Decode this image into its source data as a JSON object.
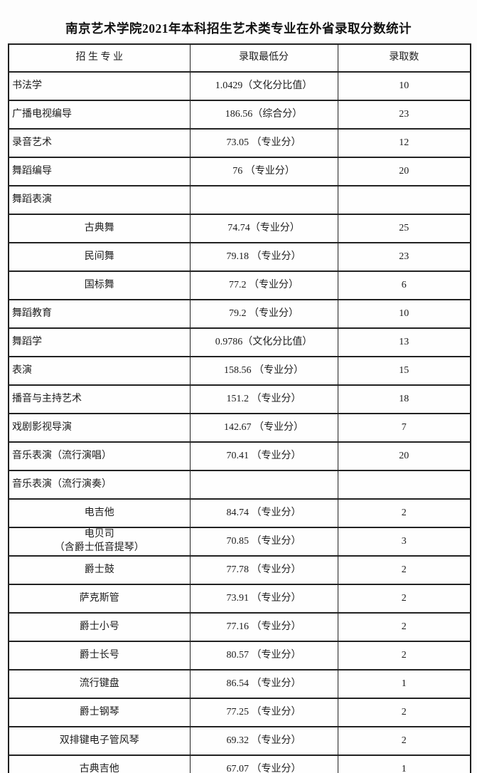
{
  "title": "南京艺术学院2021年本科招生艺术类专业在外省录取分数统计",
  "table": {
    "headers": [
      "招 生 专 业",
      "录取最低分",
      "录取数"
    ],
    "rows": [
      {
        "label": "书法学",
        "score": "1.0429（文化分比值）",
        "count": "10",
        "sub": false
      },
      {
        "label": "广播电视编导",
        "score": "186.56（综合分）",
        "count": "23",
        "sub": false
      },
      {
        "label": "录音艺术",
        "score": "73.05 （专业分）",
        "count": "12",
        "sub": false
      },
      {
        "label": "舞蹈编导",
        "score": "76 （专业分）",
        "count": "20",
        "sub": false
      },
      {
        "label": "舞蹈表演",
        "score": "",
        "count": "",
        "sub": false
      },
      {
        "label": "古典舞",
        "score": "74.74（专业分）",
        "count": "25",
        "sub": true
      },
      {
        "label": "民间舞",
        "score": "79.18 （专业分）",
        "count": "23",
        "sub": true
      },
      {
        "label": "国标舞",
        "score": "77.2 （专业分）",
        "count": "6",
        "sub": true
      },
      {
        "label": "舞蹈教育",
        "score": "79.2 （专业分）",
        "count": "10",
        "sub": false
      },
      {
        "label": "舞蹈学",
        "score": "0.9786（文化分比值）",
        "count": "13",
        "sub": false
      },
      {
        "label": "表演",
        "score": "158.56 （专业分）",
        "count": "15",
        "sub": false
      },
      {
        "label": "播音与主持艺术",
        "score": "151.2 （专业分）",
        "count": "18",
        "sub": false
      },
      {
        "label": "戏剧影视导演",
        "score": "142.67 （专业分）",
        "count": "7",
        "sub": false
      },
      {
        "label": "音乐表演（流行演唱）",
        "score": "70.41 （专业分）",
        "count": "20",
        "sub": false
      },
      {
        "label": "音乐表演（流行演奏）",
        "score": "",
        "count": "",
        "sub": false
      },
      {
        "label": "电吉他",
        "score": "84.74 （专业分）",
        "count": "2",
        "sub": true
      },
      {
        "label": "电贝司\n（含爵士低音提琴）",
        "score": "70.85 （专业分）",
        "count": "3",
        "sub": true
      },
      {
        "label": "爵士鼓",
        "score": "77.78 （专业分）",
        "count": "2",
        "sub": true
      },
      {
        "label": "萨克斯管",
        "score": "73.91 （专业分）",
        "count": "2",
        "sub": true
      },
      {
        "label": "爵士小号",
        "score": "77.16 （专业分）",
        "count": "2",
        "sub": true
      },
      {
        "label": "爵士长号",
        "score": "80.57 （专业分）",
        "count": "2",
        "sub": true
      },
      {
        "label": "流行键盘",
        "score": "86.54 （专业分）",
        "count": "1",
        "sub": true
      },
      {
        "label": "爵士钢琴",
        "score": "77.25 （专业分）",
        "count": "2",
        "sub": true
      },
      {
        "label": "双排键电子管风琴",
        "score": "69.32 （专业分）",
        "count": "2",
        "sub": true
      },
      {
        "label": "古典吉他",
        "score": "67.07 （专业分）",
        "count": "1",
        "sub": true
      }
    ]
  }
}
